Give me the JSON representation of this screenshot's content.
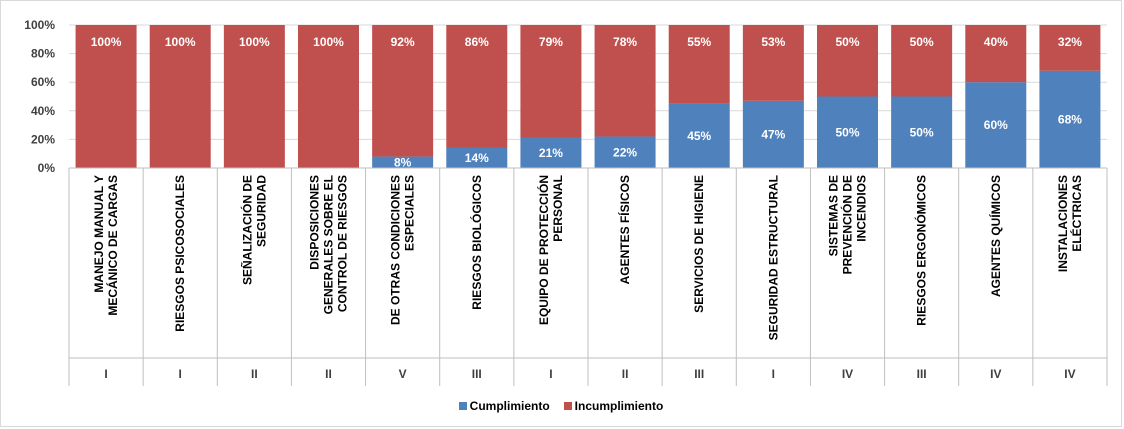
{
  "chart_data": {
    "type": "bar",
    "stacked": true,
    "percent": true,
    "ylim": [
      0,
      100
    ],
    "yticks": [
      "0%",
      "20%",
      "40%",
      "60%",
      "80%",
      "100%"
    ],
    "grid": true,
    "legend_position": "bottom",
    "categories": [
      [
        "MANEJO MANUAL Y",
        "MECÁNICO DE CARGAS"
      ],
      [
        "RIESGOS PSICOSOCIALES"
      ],
      [
        "SEÑALIZACIÓN DE",
        "SEGURIDAD"
      ],
      [
        "DISPOSICIONES",
        "GENERALES SOBRE EL",
        "CONTROL DE RIESGOS"
      ],
      [
        "DE OTRAS CONDICIONES",
        "ESPECIALES"
      ],
      [
        "RIESGOS BIOLÓGICOS"
      ],
      [
        "EQUIPO DE PROTECCIÓN",
        "PERSONAL"
      ],
      [
        "AGENTES FÍSICOS"
      ],
      [
        "SERVICIOS DE HIGIENE"
      ],
      [
        "SEGURIDAD ESTRUCTURAL"
      ],
      [
        "SISTEMAS DE",
        "PREVENCIÓN DE",
        "INCENDIOS"
      ],
      [
        "RIESGOS ERGONÓMICOS"
      ],
      [
        "AGENTES QUÍMICOS"
      ],
      [
        "INSTALACIONES",
        "ELÉCTRICAS"
      ]
    ],
    "groups": [
      "I",
      "I",
      "II",
      "II",
      "V",
      "III",
      "I",
      "II",
      "III",
      "I",
      "IV",
      "III",
      "IV",
      "IV"
    ],
    "series": [
      {
        "name": "Cumplimiento",
        "color": "#4f81bd",
        "values": [
          0,
          0,
          0,
          0,
          8,
          14,
          21,
          22,
          45,
          47,
          50,
          50,
          60,
          68
        ],
        "labels": [
          "",
          "",
          "",
          "",
          "8%",
          "14%",
          "21%",
          "22%",
          "45%",
          "47%",
          "50%",
          "50%",
          "60%",
          "68%"
        ]
      },
      {
        "name": "Incumplimiento",
        "color": "#c0504d",
        "values": [
          100,
          100,
          100,
          100,
          92,
          86,
          79,
          78,
          55,
          53,
          50,
          50,
          40,
          32
        ],
        "labels": [
          "100%",
          "100%",
          "100%",
          "100%",
          "92%",
          "86%",
          "79%",
          "78%",
          "55%",
          "53%",
          "50%",
          "50%",
          "40%",
          "32%"
        ]
      }
    ]
  }
}
